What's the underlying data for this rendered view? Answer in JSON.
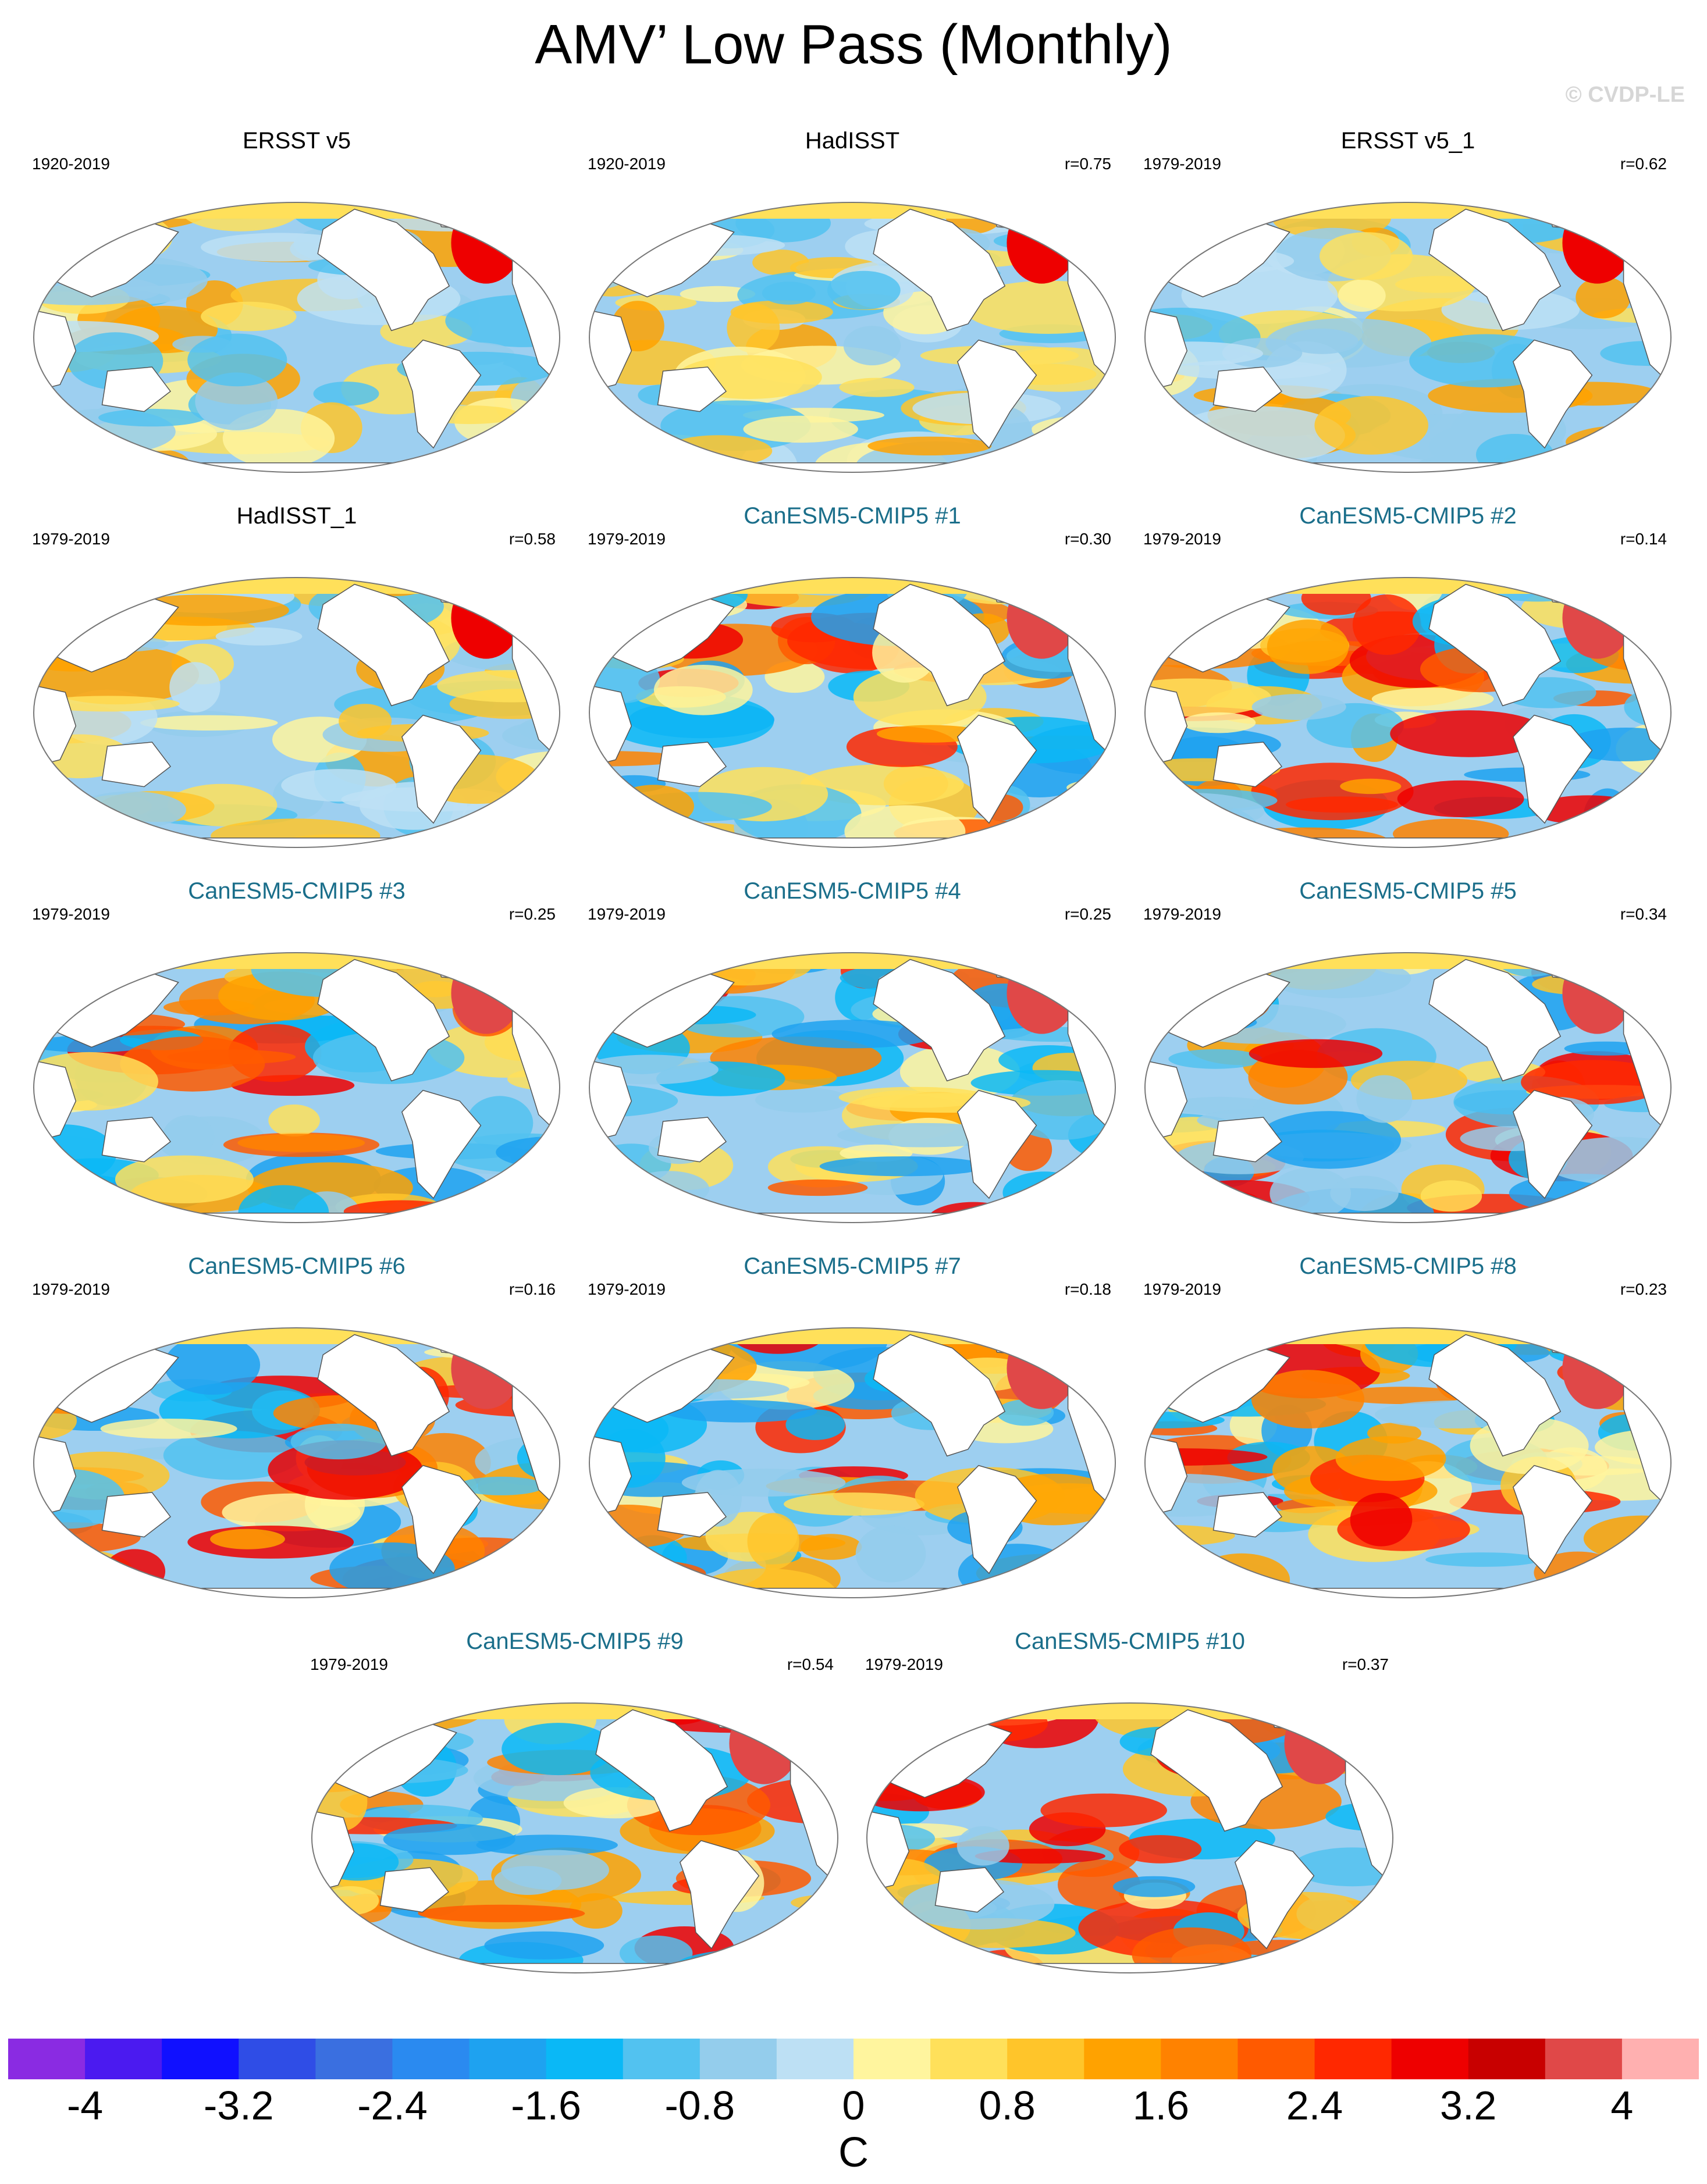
{
  "title": "AMV’ Low Pass (Monthly)",
  "copyright": "© CVDP-LE",
  "colors": {
    "model_title": "#1a6e8a",
    "ocean_blue": "#9dcff0",
    "land": "#ffffff",
    "coast": "#555555"
  },
  "panels": [
    {
      "title": "ERSST v5",
      "period": "1920-2019",
      "r": "",
      "type": "obs"
    },
    {
      "title": "HadISST",
      "period": "1920-2019",
      "r": "r=0.75",
      "type": "obs"
    },
    {
      "title": "ERSST v5_1",
      "period": "1979-2019",
      "r": "r=0.62",
      "type": "obs"
    },
    {
      "title": "HadISST_1",
      "period": "1979-2019",
      "r": "r=0.58",
      "type": "obs"
    },
    {
      "title": "CanESM5-CMIP5 #1",
      "period": "1979-2019",
      "r": "r=0.30",
      "type": "model"
    },
    {
      "title": "CanESM5-CMIP5 #2",
      "period": "1979-2019",
      "r": "r=0.14",
      "type": "model"
    },
    {
      "title": "CanESM5-CMIP5 #3",
      "period": "1979-2019",
      "r": "r=0.25",
      "type": "model"
    },
    {
      "title": "CanESM5-CMIP5 #4",
      "period": "1979-2019",
      "r": "r=0.25",
      "type": "model"
    },
    {
      "title": "CanESM5-CMIP5 #5",
      "period": "1979-2019",
      "r": "r=0.34",
      "type": "model"
    },
    {
      "title": "CanESM5-CMIP5 #6",
      "period": "1979-2019",
      "r": "r=0.16",
      "type": "model"
    },
    {
      "title": "CanESM5-CMIP5 #7",
      "period": "1979-2019",
      "r": "r=0.18",
      "type": "model"
    },
    {
      "title": "CanESM5-CMIP5 #8",
      "period": "1979-2019",
      "r": "r=0.23",
      "type": "model"
    },
    {
      "title": "CanESM5-CMIP5 #9",
      "period": "1979-2019",
      "r": "r=0.54",
      "type": "model"
    },
    {
      "title": "CanESM5-CMIP5 #10",
      "period": "1979-2019",
      "r": "r=0.37",
      "type": "model"
    }
  ],
  "chart_data": {
    "type": "heatmap",
    "title": "AMV’ Low Pass (Monthly)",
    "projection": "Robinson global maps, Pacific-centered",
    "variable": "sea surface temperature regression onto AMV",
    "unit": "C",
    "colorbar": {
      "min": -4.4,
      "max": 4.4,
      "step": 0.4,
      "ticks": [
        "-4",
        "-3.2",
        "-2.4",
        "-1.6",
        "-0.8",
        "0",
        "0.8",
        "1.6",
        "2.4",
        "3.2",
        "4"
      ],
      "colors": [
        "#8a2be2",
        "#4b1af0",
        "#1010ff",
        "#2f4de6",
        "#3a6fe0",
        "#2a8af0",
        "#1ea2f0",
        "#0ab8f6",
        "#52c2f0",
        "#94cdec",
        "#bde0f4",
        "#fff59e",
        "#ffe05a",
        "#ffc52a",
        "#ffa200",
        "#ff8200",
        "#ff5a00",
        "#ff2800",
        "#ee0000",
        "#c80000",
        "#e04848",
        "#ffb0b0"
      ]
    },
    "panels": [
      {
        "title": "ERSST v5",
        "period": "1920-2019",
        "pattern_correlation": null
      },
      {
        "title": "HadISST",
        "period": "1920-2019",
        "pattern_correlation": 0.75
      },
      {
        "title": "ERSST v5_1",
        "period": "1979-2019",
        "pattern_correlation": 0.62
      },
      {
        "title": "HadISST_1",
        "period": "1979-2019",
        "pattern_correlation": 0.58
      },
      {
        "title": "CanESM5-CMIP5 #1",
        "period": "1979-2019",
        "pattern_correlation": 0.3
      },
      {
        "title": "CanESM5-CMIP5 #2",
        "period": "1979-2019",
        "pattern_correlation": 0.14
      },
      {
        "title": "CanESM5-CMIP5 #3",
        "period": "1979-2019",
        "pattern_correlation": 0.25
      },
      {
        "title": "CanESM5-CMIP5 #4",
        "period": "1979-2019",
        "pattern_correlation": 0.25
      },
      {
        "title": "CanESM5-CMIP5 #5",
        "period": "1979-2019",
        "pattern_correlation": 0.34
      },
      {
        "title": "CanESM5-CMIP5 #6",
        "period": "1979-2019",
        "pattern_correlation": 0.16
      },
      {
        "title": "CanESM5-CMIP5 #7",
        "period": "1979-2019",
        "pattern_correlation": 0.18
      },
      {
        "title": "CanESM5-CMIP5 #8",
        "period": "1979-2019",
        "pattern_correlation": 0.23
      },
      {
        "title": "CanESM5-CMIP5 #9",
        "period": "1979-2019",
        "pattern_correlation": 0.54
      },
      {
        "title": "CanESM5-CMIP5 #10",
        "period": "1979-2019",
        "pattern_correlation": 0.37
      }
    ]
  }
}
